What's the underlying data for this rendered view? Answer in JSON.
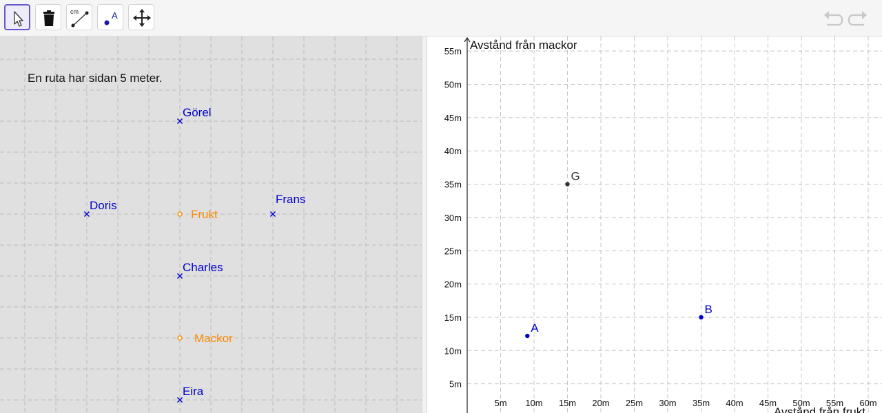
{
  "toolbar": {
    "tools": [
      {
        "name": "move-tool",
        "active": true
      },
      {
        "name": "delete-tool",
        "active": false
      },
      {
        "name": "distance-tool",
        "icon_text": "cm",
        "active": false
      },
      {
        "name": "point-tool",
        "icon_text": "A",
        "active": false
      },
      {
        "name": "move-graphics-view-tool",
        "active": false
      }
    ],
    "undo_icon": "undo-icon",
    "redo_icon": "redo-icon"
  },
  "view1": {
    "note": "En ruta har sidan 5 meter.",
    "grid_color": "#bdbdbd",
    "persons": [
      {
        "label": "Görel",
        "gx": 0,
        "gy": 3
      },
      {
        "label": "Doris",
        "gx": -3,
        "gy": 0
      },
      {
        "label": "Frans",
        "gx": 3,
        "gy": 0
      },
      {
        "label": "Charles",
        "gx": 0,
        "gy": -2
      },
      {
        "label": "Eira",
        "gx": 0,
        "gy": -6
      }
    ],
    "places": [
      {
        "label": "Frukt",
        "gx": 0,
        "gy": 0
      },
      {
        "label": "Mackor",
        "gx": 0,
        "gy": -4
      }
    ],
    "person_color": "#0000cc",
    "place_color": "#ff8800"
  },
  "view2": {
    "ylabel": "Avstånd från mackor",
    "xlabel": "Avstånd från frukt",
    "x_ticks": [
      "5m",
      "10m",
      "15m",
      "20m",
      "25m",
      "30m",
      "35m",
      "40m",
      "45m",
      "50m",
      "55m",
      "60m"
    ],
    "y_ticks": [
      "5m",
      "10m",
      "15m",
      "20m",
      "25m",
      "30m",
      "35m",
      "40m",
      "45m",
      "50m",
      "55m"
    ],
    "point_color_blue": "#0000cc",
    "point_color_gray": "#333333"
  },
  "chart_data": {
    "type": "scatter",
    "xlabel": "Avstånd från frukt",
    "ylabel": "Avstånd från mackor",
    "xlim": [
      0,
      60
    ],
    "ylim": [
      0,
      56
    ],
    "grid": true,
    "points": [
      {
        "label": "G",
        "x": 15,
        "y": 35,
        "color": "#333333"
      },
      {
        "label": "A",
        "x": 9,
        "y": 12.2,
        "color": "#0000cc"
      },
      {
        "label": "B",
        "x": 35,
        "y": 15,
        "color": "#0000cc"
      }
    ]
  }
}
